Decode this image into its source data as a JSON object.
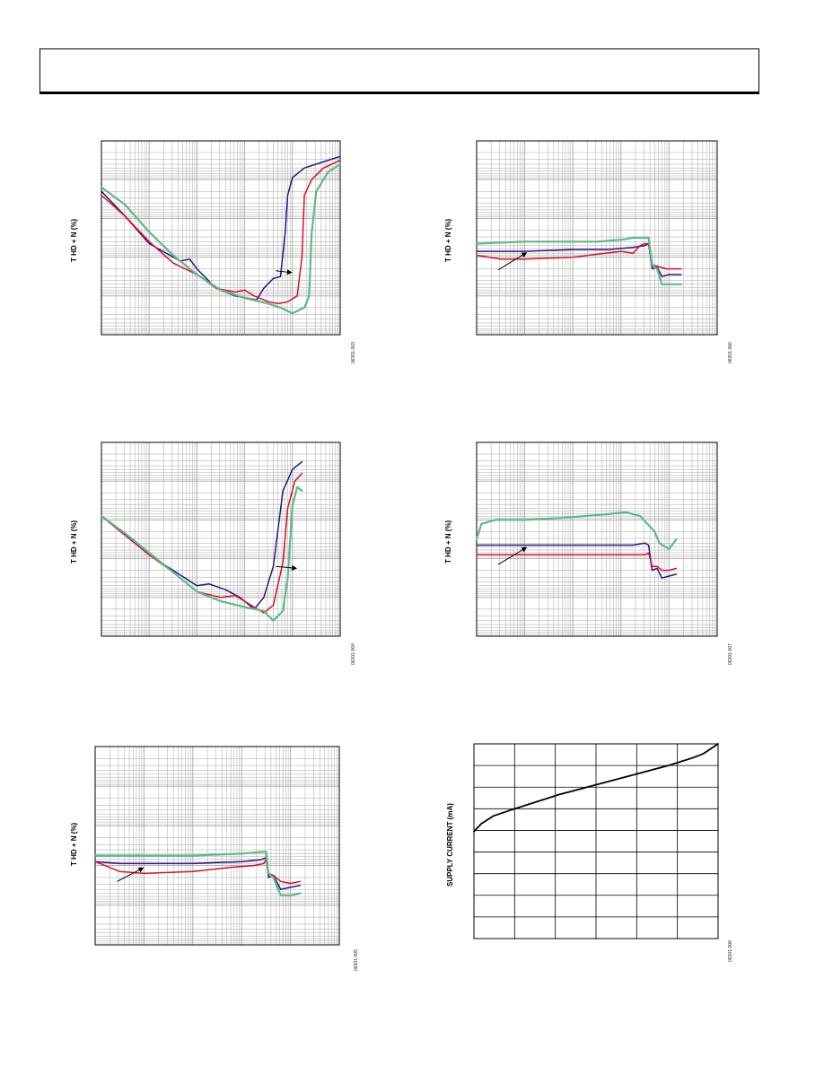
{
  "header": {
    "text": ""
  },
  "colors": {
    "red": "#d8102a",
    "navy": "#2a1580",
    "green": "#5fb88a",
    "grid": "#a8a8a8",
    "frame": "#000000"
  },
  "chart_data": [
    {
      "id": "fig5",
      "type": "line",
      "ylabel": "T HD + N (%)",
      "figure_id": "06301-003",
      "grid": "log-log",
      "series": [
        {
          "color": "navy",
          "points": [
            [
              0.0,
              0.26
            ],
            [
              0.1,
              0.39
            ],
            [
              0.2,
              0.53
            ],
            [
              0.33,
              0.62
            ],
            [
              0.37,
              0.61
            ],
            [
              0.4,
              0.66
            ],
            [
              0.48,
              0.76
            ],
            [
              0.56,
              0.8
            ],
            [
              0.65,
              0.82
            ],
            [
              0.68,
              0.76
            ],
            [
              0.72,
              0.71
            ],
            [
              0.75,
              0.7
            ],
            [
              0.77,
              0.47
            ],
            [
              0.78,
              0.28
            ],
            [
              0.8,
              0.19
            ],
            [
              0.85,
              0.14
            ],
            [
              0.95,
              0.1
            ],
            [
              1.0,
              0.08
            ]
          ]
        },
        {
          "color": "red",
          "points": [
            [
              0.0,
              0.28
            ],
            [
              0.1,
              0.39
            ],
            [
              0.2,
              0.52
            ],
            [
              0.3,
              0.63
            ],
            [
              0.4,
              0.69
            ],
            [
              0.48,
              0.76
            ],
            [
              0.56,
              0.78
            ],
            [
              0.6,
              0.77
            ],
            [
              0.64,
              0.8
            ],
            [
              0.7,
              0.83
            ],
            [
              0.74,
              0.84
            ],
            [
              0.78,
              0.83
            ],
            [
              0.82,
              0.8
            ],
            [
              0.84,
              0.6
            ],
            [
              0.85,
              0.28
            ],
            [
              0.88,
              0.2
            ],
            [
              0.93,
              0.14
            ],
            [
              1.0,
              0.1
            ]
          ]
        },
        {
          "color": "green",
          "points": [
            [
              0.0,
              0.24
            ],
            [
              0.1,
              0.33
            ],
            [
              0.2,
              0.47
            ],
            [
              0.3,
              0.59
            ],
            [
              0.4,
              0.69
            ],
            [
              0.5,
              0.77
            ],
            [
              0.6,
              0.81
            ],
            [
              0.7,
              0.84
            ],
            [
              0.75,
              0.86
            ],
            [
              0.8,
              0.89
            ],
            [
              0.85,
              0.86
            ],
            [
              0.87,
              0.8
            ],
            [
              0.88,
              0.48
            ],
            [
              0.9,
              0.26
            ],
            [
              0.95,
              0.16
            ],
            [
              1.0,
              0.12
            ]
          ]
        }
      ],
      "arrow": [
        [
          0.73,
          0.67
        ],
        [
          0.8,
          0.68
        ]
      ]
    },
    {
      "id": "fig8",
      "type": "line",
      "ylabel": "T HD + N (%)",
      "figure_id": "06301-006",
      "grid": "log-log",
      "series": [
        {
          "color": "navy",
          "points": [
            [
              0.0,
              0.57
            ],
            [
              0.2,
              0.57
            ],
            [
              0.4,
              0.56
            ],
            [
              0.55,
              0.56
            ],
            [
              0.65,
              0.55
            ],
            [
              0.7,
              0.54
            ],
            [
              0.715,
              0.53
            ],
            [
              0.73,
              0.66
            ],
            [
              0.75,
              0.65
            ],
            [
              0.77,
              0.7
            ],
            [
              0.8,
              0.69
            ],
            [
              0.85,
              0.69
            ]
          ]
        },
        {
          "color": "red",
          "points": [
            [
              0.0,
              0.59
            ],
            [
              0.1,
              0.61
            ],
            [
              0.2,
              0.61
            ],
            [
              0.4,
              0.6
            ],
            [
              0.6,
              0.57
            ],
            [
              0.65,
              0.58
            ],
            [
              0.68,
              0.54
            ],
            [
              0.7,
              0.53
            ],
            [
              0.715,
              0.53
            ],
            [
              0.73,
              0.64
            ],
            [
              0.76,
              0.65
            ],
            [
              0.79,
              0.66
            ],
            [
              0.85,
              0.66
            ]
          ]
        },
        {
          "color": "green",
          "points": [
            [
              0.0,
              0.53
            ],
            [
              0.2,
              0.52
            ],
            [
              0.3,
              0.52
            ],
            [
              0.5,
              0.52
            ],
            [
              0.6,
              0.51
            ],
            [
              0.65,
              0.5
            ],
            [
              0.7,
              0.5
            ],
            [
              0.715,
              0.5
            ],
            [
              0.73,
              0.64
            ],
            [
              0.75,
              0.66
            ],
            [
              0.77,
              0.74
            ],
            [
              0.8,
              0.74
            ],
            [
              0.85,
              0.74
            ]
          ]
        }
      ],
      "arrow": [
        [
          0.09,
          0.665
        ],
        [
          0.21,
          0.575
        ]
      ]
    },
    {
      "id": "fig6",
      "type": "line",
      "ylabel": "T HD + N (%)",
      "figure_id": "06301-004",
      "grid": "log-log",
      "series": [
        {
          "color": "navy",
          "points": [
            [
              0.0,
              0.38
            ],
            [
              0.1,
              0.48
            ],
            [
              0.2,
              0.58
            ],
            [
              0.3,
              0.66
            ],
            [
              0.4,
              0.74
            ],
            [
              0.45,
              0.73
            ],
            [
              0.52,
              0.76
            ],
            [
              0.58,
              0.8
            ],
            [
              0.64,
              0.86
            ],
            [
              0.68,
              0.8
            ],
            [
              0.72,
              0.64
            ],
            [
              0.76,
              0.25
            ],
            [
              0.8,
              0.14
            ],
            [
              0.84,
              0.1
            ]
          ]
        },
        {
          "color": "red",
          "points": [
            [
              0.0,
              0.38
            ],
            [
              0.1,
              0.48
            ],
            [
              0.2,
              0.58
            ],
            [
              0.3,
              0.67
            ],
            [
              0.4,
              0.77
            ],
            [
              0.5,
              0.8
            ],
            [
              0.56,
              0.79
            ],
            [
              0.6,
              0.82
            ],
            [
              0.68,
              0.88
            ],
            [
              0.72,
              0.84
            ],
            [
              0.76,
              0.62
            ],
            [
              0.78,
              0.34
            ],
            [
              0.81,
              0.2
            ],
            [
              0.84,
              0.16
            ]
          ]
        },
        {
          "color": "green",
          "points": [
            [
              0.0,
              0.38
            ],
            [
              0.1,
              0.47
            ],
            [
              0.2,
              0.57
            ],
            [
              0.3,
              0.67
            ],
            [
              0.4,
              0.77
            ],
            [
              0.5,
              0.82
            ],
            [
              0.6,
              0.85
            ],
            [
              0.68,
              0.87
            ],
            [
              0.72,
              0.92
            ],
            [
              0.76,
              0.87
            ],
            [
              0.78,
              0.7
            ],
            [
              0.8,
              0.33
            ],
            [
              0.82,
              0.23
            ],
            [
              0.84,
              0.25
            ]
          ]
        }
      ],
      "arrow": [
        [
          0.73,
          0.64
        ],
        [
          0.82,
          0.65
        ]
      ]
    },
    {
      "id": "fig9",
      "type": "line",
      "ylabel": "T HD + N (%)",
      "figure_id": "06301-007",
      "grid": "log-log",
      "series": [
        {
          "color": "green",
          "points": [
            [
              0.0,
              0.5
            ],
            [
              0.02,
              0.42
            ],
            [
              0.08,
              0.4
            ],
            [
              0.2,
              0.4
            ],
            [
              0.35,
              0.39
            ],
            [
              0.45,
              0.38
            ],
            [
              0.55,
              0.37
            ],
            [
              0.62,
              0.36
            ],
            [
              0.68,
              0.38
            ],
            [
              0.74,
              0.46
            ],
            [
              0.76,
              0.52
            ],
            [
              0.8,
              0.55
            ],
            [
              0.83,
              0.5
            ]
          ]
        },
        {
          "color": "navy",
          "points": [
            [
              0.0,
              0.53
            ],
            [
              0.1,
              0.53
            ],
            [
              0.3,
              0.53
            ],
            [
              0.5,
              0.53
            ],
            [
              0.65,
              0.53
            ],
            [
              0.7,
              0.52
            ],
            [
              0.715,
              0.53
            ],
            [
              0.73,
              0.66
            ],
            [
              0.75,
              0.65
            ],
            [
              0.77,
              0.7
            ],
            [
              0.8,
              0.69
            ],
            [
              0.83,
              0.68
            ]
          ]
        },
        {
          "color": "red",
          "points": [
            [
              0.0,
              0.58
            ],
            [
              0.2,
              0.58
            ],
            [
              0.4,
              0.58
            ],
            [
              0.6,
              0.58
            ],
            [
              0.7,
              0.58
            ],
            [
              0.715,
              0.57
            ],
            [
              0.73,
              0.64
            ],
            [
              0.75,
              0.64
            ],
            [
              0.77,
              0.66
            ],
            [
              0.8,
              0.66
            ],
            [
              0.83,
              0.65
            ]
          ]
        }
      ],
      "arrow": [
        [
          0.09,
          0.63
        ],
        [
          0.21,
          0.54
        ]
      ]
    },
    {
      "id": "fig7",
      "type": "line",
      "ylabel": "T HD + N (%)",
      "figure_id": "06301-005",
      "grid": "log-log",
      "series": [
        {
          "color": "navy",
          "points": [
            [
              0.0,
              0.58
            ],
            [
              0.1,
              0.59
            ],
            [
              0.2,
              0.59
            ],
            [
              0.4,
              0.59
            ],
            [
              0.6,
              0.58
            ],
            [
              0.68,
              0.57
            ],
            [
              0.7,
              0.56
            ],
            [
              0.71,
              0.66
            ],
            [
              0.73,
              0.65
            ],
            [
              0.76,
              0.72
            ],
            [
              0.8,
              0.71
            ],
            [
              0.84,
              0.7
            ]
          ]
        },
        {
          "color": "red",
          "points": [
            [
              0.0,
              0.58
            ],
            [
              0.04,
              0.6
            ],
            [
              0.1,
              0.63
            ],
            [
              0.2,
              0.64
            ],
            [
              0.4,
              0.63
            ],
            [
              0.55,
              0.61
            ],
            [
              0.65,
              0.6
            ],
            [
              0.69,
              0.59
            ],
            [
              0.7,
              0.57
            ],
            [
              0.71,
              0.64
            ],
            [
              0.73,
              0.65
            ],
            [
              0.76,
              0.68
            ],
            [
              0.8,
              0.69
            ],
            [
              0.84,
              0.68
            ]
          ]
        },
        {
          "color": "green",
          "points": [
            [
              0.0,
              0.55
            ],
            [
              0.2,
              0.55
            ],
            [
              0.4,
              0.55
            ],
            [
              0.6,
              0.54
            ],
            [
              0.7,
              0.53
            ],
            [
              0.71,
              0.64
            ],
            [
              0.73,
              0.66
            ],
            [
              0.76,
              0.75
            ],
            [
              0.8,
              0.75
            ],
            [
              0.84,
              0.74
            ]
          ]
        }
      ],
      "arrow": [
        [
          0.09,
          0.68
        ],
        [
          0.2,
          0.61
        ]
      ]
    },
    {
      "id": "fig10",
      "type": "line",
      "ylabel": "SUPPLY CURRENT (mA)",
      "figure_id": "06301-008",
      "grid": "linear 6x9",
      "series": [
        {
          "color": "black",
          "points": [
            [
              0.0,
              0.45
            ],
            [
              0.03,
              0.41
            ],
            [
              0.08,
              0.37
            ],
            [
              0.15,
              0.34
            ],
            [
              0.25,
              0.3
            ],
            [
              0.35,
              0.26
            ],
            [
              0.5,
              0.21
            ],
            [
              0.65,
              0.16
            ],
            [
              0.8,
              0.11
            ],
            [
              0.9,
              0.07
            ],
            [
              0.94,
              0.05
            ],
            [
              1.0,
              0.0
            ]
          ]
        }
      ]
    }
  ]
}
